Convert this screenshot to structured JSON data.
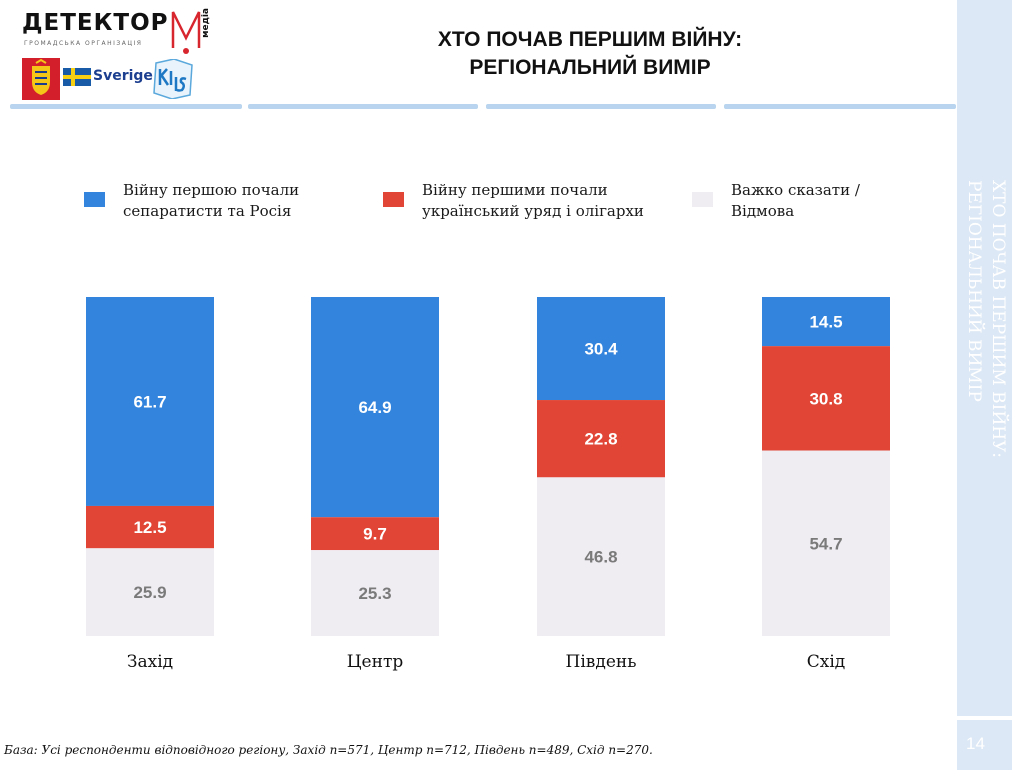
{
  "logo": {
    "wordmark": "ДЕТЕКТОР",
    "subtitle": "ГРОМАДСЬКА  ОРГАНІЗАЦІЯ",
    "media": "медіа",
    "partner_sweden": "Sverige"
  },
  "header": {
    "title_line1": "ХТО ПОЧАВ ПЕРШИМ ВІЙНУ:",
    "title_line2": "РЕГІОНАЛЬНИЙ ВИМІР"
  },
  "sidebar": {
    "title_line1": "ХТО ПОЧАВ ПЕРШИМ ВІЙНУ:",
    "title_line2": "РЕГІОНАЛЬНИЙ ВИМІР",
    "page_number": "14"
  },
  "legend": [
    {
      "line1": "Війну першою почали",
      "line2": "сепаратисти та Росія",
      "color": "#3384dc"
    },
    {
      "line1": "Війну першими почали",
      "line2": "український уряд і олігархи",
      "color": "#e04535"
    },
    {
      "line1": "Важко сказати /",
      "line2": "Відмова",
      "color": "#efecf2"
    }
  ],
  "chart_data": {
    "type": "bar",
    "stacked": true,
    "normalized_percent": true,
    "title": "ХТО ПОЧАВ ПЕРШИМ ВІЙНУ: РЕГІОНАЛЬНИЙ ВИМІР",
    "categories": [
      "Захід",
      "Центр",
      "Південь",
      "Схід"
    ],
    "series": [
      {
        "name": "Війну першою почали сепаратисти та Росія",
        "color": "#3384dc",
        "label_color": "#ffffff",
        "values": [
          61.7,
          64.9,
          30.4,
          14.5
        ]
      },
      {
        "name": "Війну першими почали український уряд і олігархи",
        "color": "#e04535",
        "label_color": "#ffffff",
        "values": [
          12.5,
          9.7,
          22.8,
          30.8
        ]
      },
      {
        "name": "Важко сказати / Відмова",
        "color": "#efecf2",
        "label_color": "#7a7a7a",
        "values": [
          25.9,
          25.3,
          46.8,
          54.7
        ]
      }
    ],
    "ylim": [
      0,
      100
    ],
    "xlabel": "",
    "ylabel": "",
    "grid": false,
    "legend_position": "top"
  },
  "footnote": "База: Усі респонденти відповідного регіону, Захід n=571, Центр n=712, Південь n=489, Схід n=270."
}
